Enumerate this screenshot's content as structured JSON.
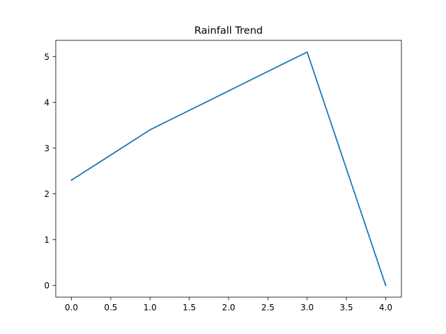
{
  "chart_data": {
    "type": "line",
    "title": "Rainfall Trend",
    "xlabel": "",
    "ylabel": "",
    "xlim": [
      -0.2,
      4.2
    ],
    "ylim": [
      -0.255,
      5.355
    ],
    "x_ticks": [
      0.0,
      0.5,
      1.0,
      1.5,
      2.0,
      2.5,
      3.0,
      3.5,
      4.0
    ],
    "x_tick_labels": [
      "0.0",
      "0.5",
      "1.0",
      "1.5",
      "2.0",
      "2.5",
      "3.0",
      "3.5",
      "4.0"
    ],
    "y_ticks": [
      0,
      1,
      2,
      3,
      4,
      5
    ],
    "y_tick_labels": [
      "0",
      "1",
      "2",
      "3",
      "4",
      "5"
    ],
    "grid": false,
    "legend": "none",
    "series": [
      {
        "x": [
          0,
          1,
          2,
          3,
          4
        ],
        "values": [
          2.3,
          3.4,
          4.25,
          5.1,
          0.0
        ],
        "color": "#1f77b4"
      }
    ]
  }
}
